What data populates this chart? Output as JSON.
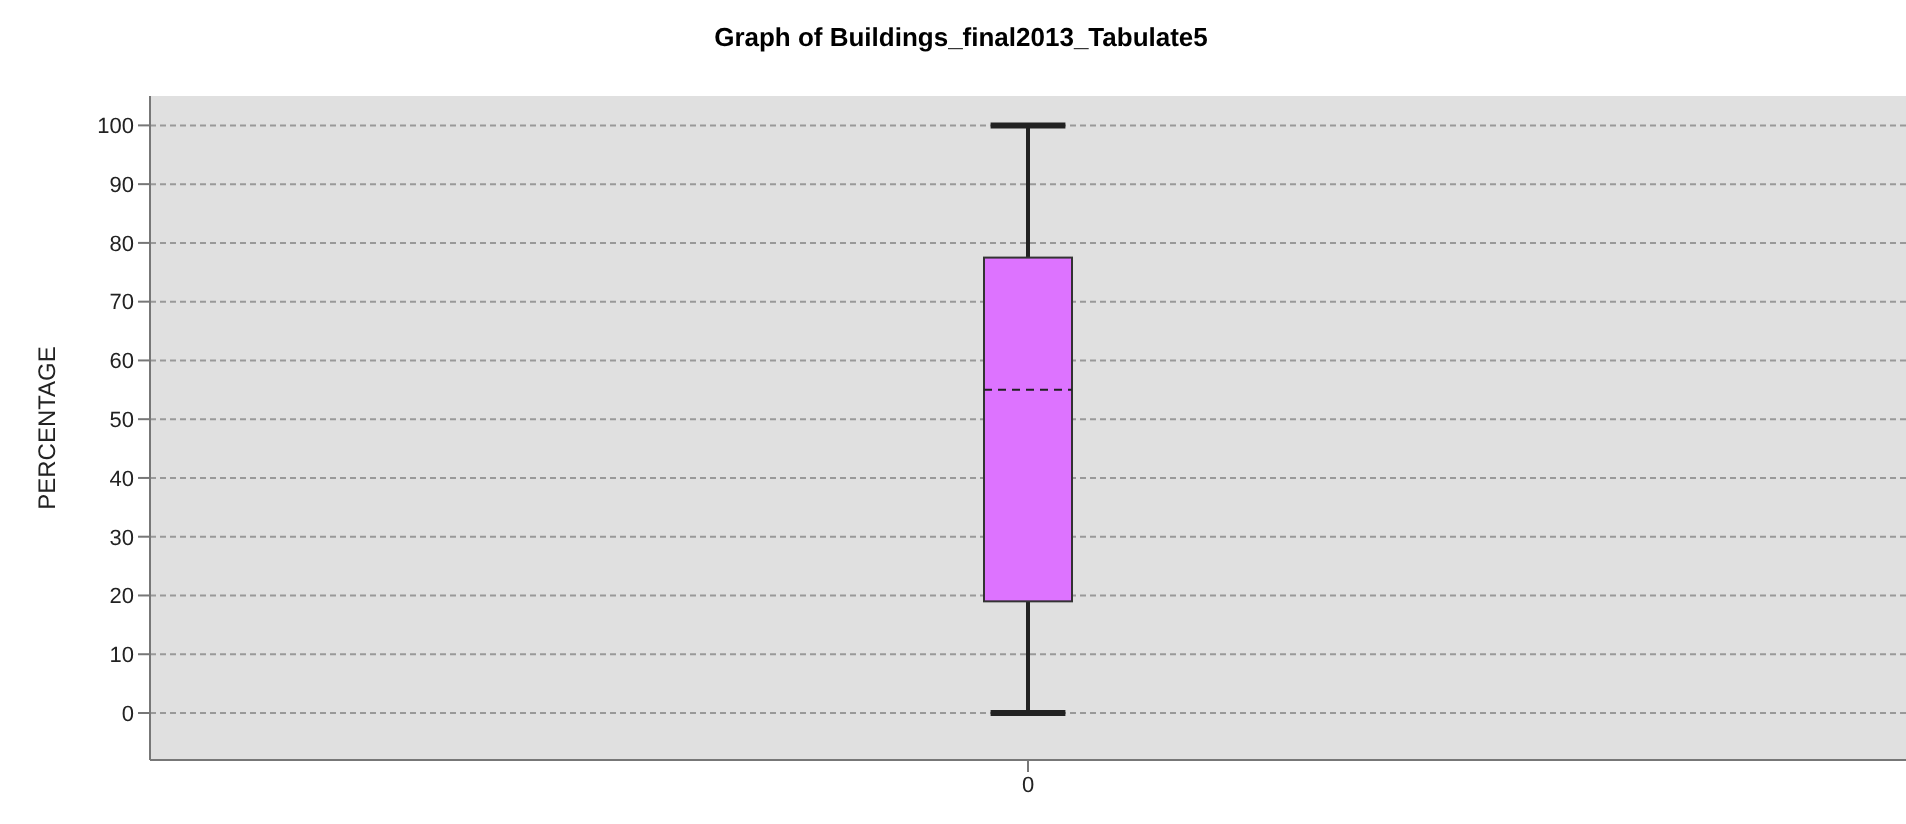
{
  "chart_data": {
    "type": "box",
    "title": "Graph of Buildings_final2013_Tabulate5",
    "ylabel": "PERCENTAGE",
    "categories": [
      "0"
    ],
    "boxes": [
      {
        "low": 0,
        "q1": 19,
        "median": 55,
        "q3": 77.5,
        "high": 100
      }
    ],
    "color": "#dd73ff",
    "ylim": [
      -8,
      105
    ],
    "yticks": [
      0,
      10,
      20,
      30,
      40,
      50,
      60,
      70,
      80,
      90,
      100
    ],
    "grid": "y",
    "legend": false
  }
}
